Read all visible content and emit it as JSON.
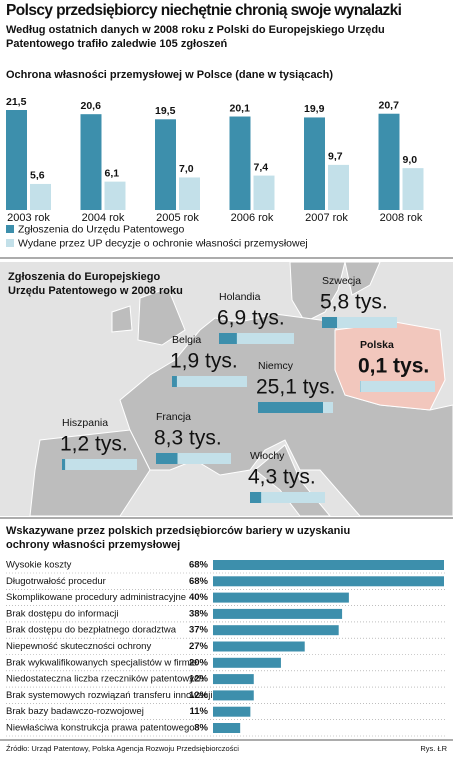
{
  "header": {
    "title": "Polscy przedsiębiorcy niechętnie chronią swoje wynalazki",
    "subtitle": "Według ostatnich danych w 2008 roku z Polski do Europejskiego Urzędu Patentowego trafiło zaledwie 105 zgłoszeń"
  },
  "chart_data": [
    {
      "type": "bar",
      "title": "Ochrona własności przemysłowej w Polsce (dane w tysiącach)",
      "categories": [
        "2003 rok",
        "2004 rok",
        "2005 rok",
        "2006 rok",
        "2007 rok",
        "2008 rok"
      ],
      "series": [
        {
          "name": "Zgłoszenia do Urzędu Patentowego",
          "color": "#3d8fac",
          "values": [
            21.5,
            20.6,
            19.5,
            20.1,
            19.9,
            20.7
          ],
          "value_labels": [
            "21,5",
            "20,6",
            "19,5",
            "20,1",
            "19,9",
            "20,7"
          ]
        },
        {
          "name": "Wydane przez UP decyzje o ochronie własności przemysłowej",
          "color": "#c3e0e9",
          "values": [
            5.6,
            6.1,
            7.0,
            7.4,
            9.7,
            9.0
          ],
          "value_labels": [
            "5,6",
            "6,1",
            "7,0",
            "7,4",
            "9,7",
            "9,0"
          ]
        }
      ]
    },
    {
      "type": "map",
      "title": "Zgłoszenia do Europejskiego Urzędu Patentowego w 2008 roku",
      "categories": [
        "Holandia",
        "Szwecja",
        "Belgia",
        "Niemcy",
        "Polska",
        "Hiszpania",
        "Francja",
        "Włochy"
      ],
      "values": [
        6.9,
        5.8,
        1.9,
        25.1,
        0.1,
        1.2,
        8.3,
        4.3
      ],
      "value_labels": [
        "6,9 tys.",
        "5,8 tys.",
        "1,9 tys.",
        "25,1 tys.",
        "0,1 tys.",
        "1,2 tys.",
        "8,3 tys.",
        "4,3 tys."
      ],
      "color": "#3d8fac",
      "highlight": "Polska",
      "highlight_color": "#e0362c"
    },
    {
      "type": "hbar",
      "title": "Wskazywane przez polskich przedsiębiorców bariery w uzyskaniu ochrony własności przemysłowej",
      "categories": [
        "Wysokie koszty",
        "Długotrwałość procedur",
        "Skomplikowane procedury administracyjne",
        "Brak dostępu do informacji",
        "Brak dostępu do bezpłatnego doradztwa",
        "Niepewność skuteczności ochrony",
        "Brak wykwalifikowanych specjalistów w firmie",
        "Niedostateczna liczba rzeczników patentowych",
        "Brak systemowych rozwiązań transferu innowacji",
        "Brak bazy badawczo-rozwojowej",
        "Niewłaściwa konstrukcja prawa patentowego"
      ],
      "values": [
        68,
        68,
        40,
        38,
        37,
        27,
        20,
        12,
        12,
        11,
        8
      ],
      "value_labels": [
        "68%",
        "68%",
        "40%",
        "38%",
        "37%",
        "27%",
        "20%",
        "12%",
        "12%",
        "11%",
        "8%"
      ],
      "color": "#3d8fac"
    }
  ],
  "footer": {
    "source": "Źródło: Urząd Patentowy, Polska Agencja Rozwoju Przedsiębiorczości",
    "credit": "Rys. ŁR"
  }
}
